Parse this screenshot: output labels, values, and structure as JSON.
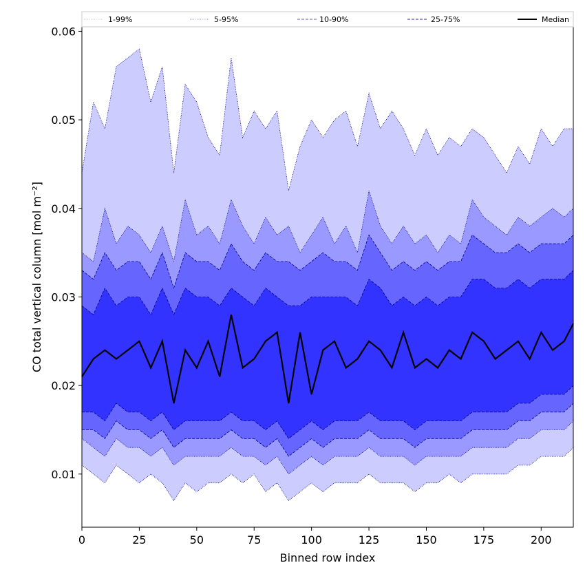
{
  "chart_data": {
    "type": "area",
    "xlabel": "Binned row index",
    "ylabel": "CO total vertical column [mol m⁻²]",
    "xlim": [
      0,
      214
    ],
    "ylim": [
      0.004,
      0.0605
    ],
    "xticks": [
      0,
      25,
      50,
      75,
      100,
      125,
      150,
      175,
      200
    ],
    "yticks": [
      0.01,
      0.02,
      0.03,
      0.04,
      0.05,
      0.06
    ],
    "ytick_labels": [
      "0.01",
      "0.02",
      "0.03",
      "0.04",
      "0.05",
      "0.06"
    ],
    "grid": false,
    "legend_position": "top",
    "colors": {
      "band_1_99": "#ccccff",
      "band_5_95": "#9999ff",
      "band_10_90": "#6666ff",
      "band_25_75": "#3333ff",
      "median": "#000000",
      "edge": "#00008b"
    },
    "x": [
      0,
      5,
      10,
      15,
      20,
      25,
      30,
      35,
      40,
      45,
      50,
      55,
      60,
      65,
      70,
      75,
      80,
      85,
      90,
      95,
      100,
      105,
      110,
      115,
      120,
      125,
      130,
      135,
      140,
      145,
      150,
      155,
      160,
      165,
      170,
      175,
      180,
      185,
      190,
      195,
      200,
      205,
      210,
      214
    ],
    "series": [
      {
        "name": "1-99%",
        "style": "dotted",
        "upper": [
          0.044,
          0.052,
          0.049,
          0.056,
          0.057,
          0.058,
          0.052,
          0.056,
          0.044,
          0.054,
          0.052,
          0.048,
          0.046,
          0.057,
          0.048,
          0.051,
          0.049,
          0.051,
          0.042,
          0.047,
          0.05,
          0.048,
          0.05,
          0.051,
          0.047,
          0.053,
          0.049,
          0.051,
          0.049,
          0.046,
          0.049,
          0.046,
          0.048,
          0.047,
          0.049,
          0.048,
          0.046,
          0.044,
          0.047,
          0.045,
          0.049,
          0.047,
          0.049,
          0.049
        ],
        "lower": [
          0.011,
          0.01,
          0.009,
          0.011,
          0.01,
          0.009,
          0.01,
          0.009,
          0.007,
          0.009,
          0.008,
          0.009,
          0.009,
          0.01,
          0.009,
          0.01,
          0.008,
          0.009,
          0.007,
          0.008,
          0.009,
          0.008,
          0.009,
          0.009,
          0.009,
          0.01,
          0.009,
          0.009,
          0.009,
          0.008,
          0.009,
          0.009,
          0.01,
          0.009,
          0.01,
          0.01,
          0.01,
          0.01,
          0.011,
          0.011,
          0.012,
          0.012,
          0.012,
          0.013
        ]
      },
      {
        "name": "5-95%",
        "style": "dotted",
        "upper": [
          0.035,
          0.034,
          0.04,
          0.036,
          0.038,
          0.037,
          0.035,
          0.038,
          0.034,
          0.041,
          0.037,
          0.038,
          0.036,
          0.041,
          0.038,
          0.036,
          0.039,
          0.037,
          0.038,
          0.035,
          0.037,
          0.039,
          0.036,
          0.038,
          0.035,
          0.042,
          0.038,
          0.036,
          0.038,
          0.036,
          0.037,
          0.035,
          0.037,
          0.036,
          0.041,
          0.039,
          0.038,
          0.037,
          0.039,
          0.038,
          0.039,
          0.04,
          0.039,
          0.04
        ],
        "lower": [
          0.014,
          0.013,
          0.012,
          0.014,
          0.013,
          0.013,
          0.012,
          0.013,
          0.011,
          0.012,
          0.012,
          0.012,
          0.012,
          0.013,
          0.012,
          0.012,
          0.011,
          0.012,
          0.01,
          0.011,
          0.012,
          0.011,
          0.012,
          0.012,
          0.012,
          0.013,
          0.012,
          0.012,
          0.012,
          0.011,
          0.012,
          0.012,
          0.012,
          0.012,
          0.013,
          0.013,
          0.013,
          0.013,
          0.014,
          0.014,
          0.015,
          0.015,
          0.015,
          0.016
        ]
      },
      {
        "name": "10-90%",
        "style": "dashed",
        "upper": [
          0.033,
          0.032,
          0.035,
          0.033,
          0.034,
          0.034,
          0.032,
          0.035,
          0.031,
          0.035,
          0.034,
          0.034,
          0.033,
          0.036,
          0.034,
          0.033,
          0.035,
          0.034,
          0.034,
          0.033,
          0.034,
          0.035,
          0.034,
          0.034,
          0.033,
          0.037,
          0.035,
          0.033,
          0.034,
          0.033,
          0.034,
          0.033,
          0.034,
          0.034,
          0.037,
          0.036,
          0.035,
          0.035,
          0.036,
          0.035,
          0.036,
          0.036,
          0.036,
          0.037
        ],
        "lower": [
          0.015,
          0.015,
          0.014,
          0.016,
          0.015,
          0.015,
          0.014,
          0.015,
          0.013,
          0.014,
          0.014,
          0.014,
          0.014,
          0.015,
          0.014,
          0.014,
          0.013,
          0.014,
          0.012,
          0.013,
          0.014,
          0.013,
          0.014,
          0.014,
          0.014,
          0.015,
          0.014,
          0.014,
          0.014,
          0.013,
          0.014,
          0.014,
          0.014,
          0.014,
          0.015,
          0.015,
          0.015,
          0.015,
          0.016,
          0.016,
          0.017,
          0.017,
          0.017,
          0.018
        ]
      },
      {
        "name": "25-75%",
        "style": "dashed",
        "upper": [
          0.029,
          0.028,
          0.031,
          0.029,
          0.03,
          0.03,
          0.028,
          0.031,
          0.028,
          0.031,
          0.03,
          0.03,
          0.029,
          0.031,
          0.03,
          0.029,
          0.031,
          0.03,
          0.029,
          0.029,
          0.03,
          0.03,
          0.03,
          0.03,
          0.029,
          0.032,
          0.031,
          0.029,
          0.03,
          0.029,
          0.03,
          0.029,
          0.03,
          0.03,
          0.032,
          0.032,
          0.031,
          0.031,
          0.032,
          0.031,
          0.032,
          0.032,
          0.032,
          0.033
        ],
        "lower": [
          0.017,
          0.017,
          0.016,
          0.018,
          0.017,
          0.017,
          0.016,
          0.017,
          0.015,
          0.016,
          0.016,
          0.016,
          0.016,
          0.017,
          0.016,
          0.016,
          0.015,
          0.016,
          0.014,
          0.015,
          0.016,
          0.015,
          0.016,
          0.016,
          0.016,
          0.017,
          0.016,
          0.016,
          0.016,
          0.015,
          0.016,
          0.016,
          0.016,
          0.016,
          0.017,
          0.017,
          0.017,
          0.017,
          0.018,
          0.018,
          0.019,
          0.019,
          0.019,
          0.02
        ]
      },
      {
        "name": "Median",
        "style": "solid",
        "values": [
          0.021,
          0.023,
          0.024,
          0.023,
          0.024,
          0.025,
          0.022,
          0.025,
          0.018,
          0.024,
          0.022,
          0.025,
          0.021,
          0.028,
          0.022,
          0.023,
          0.025,
          0.026,
          0.018,
          0.026,
          0.019,
          0.024,
          0.025,
          0.022,
          0.023,
          0.025,
          0.024,
          0.022,
          0.026,
          0.022,
          0.023,
          0.022,
          0.024,
          0.023,
          0.026,
          0.025,
          0.023,
          0.024,
          0.025,
          0.023,
          0.026,
          0.024,
          0.025,
          0.027
        ]
      }
    ]
  }
}
